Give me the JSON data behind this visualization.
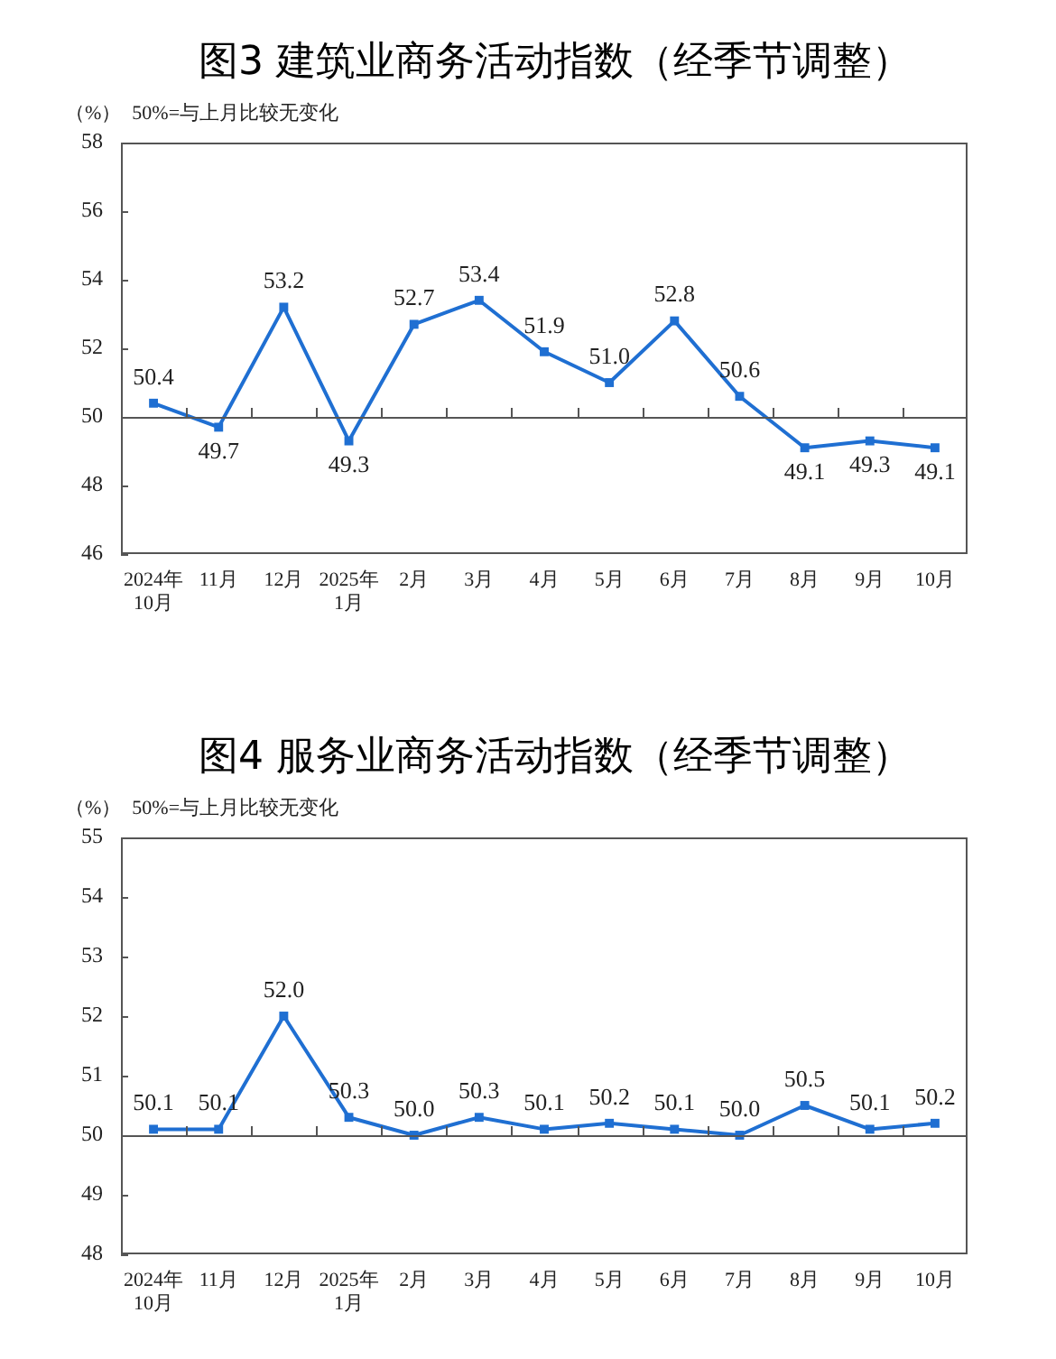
{
  "chart_data": [
    {
      "type": "line",
      "title": "图3  建筑业商务活动指数（经季节调整）",
      "ylabel": "（%）",
      "annotations": [
        "50%=与上月比较无变化"
      ],
      "categories": [
        "2024年\n10月",
        "11月",
        "12月",
        "2025年\n1月",
        "2月",
        "3月",
        "4月",
        "5月",
        "6月",
        "7月",
        "8月",
        "9月",
        "10月"
      ],
      "values": [
        50.4,
        49.7,
        53.2,
        49.3,
        52.7,
        53.4,
        51.9,
        51.0,
        52.8,
        50.6,
        49.1,
        49.3,
        49.1
      ],
      "value_labels": [
        "50.4",
        "49.7",
        "53.2",
        "49.3",
        "52.7",
        "53.4",
        "51.9",
        "51.0",
        "52.8",
        "50.6",
        "49.1",
        "49.3",
        "49.1"
      ],
      "color": "#1f6fd2",
      "marker": "square",
      "grid": false,
      "ylim": [
        46,
        58
      ],
      "yticks": [
        46,
        48,
        50,
        52,
        54,
        56,
        58
      ],
      "ref_lines": [
        {
          "axis": "y",
          "value": 50,
          "color": "#555555"
        }
      ]
    },
    {
      "type": "line",
      "title": "图4  服务业商务活动指数（经季节调整）",
      "ylabel": "（%）",
      "annotations": [
        "50%=与上月比较无变化"
      ],
      "categories": [
        "2024年\n10月",
        "11月",
        "12月",
        "2025年\n1月",
        "2月",
        "3月",
        "4月",
        "5月",
        "6月",
        "7月",
        "8月",
        "9月",
        "10月"
      ],
      "values": [
        50.1,
        50.1,
        52.0,
        50.3,
        50.0,
        50.3,
        50.1,
        50.2,
        50.1,
        50.0,
        50.5,
        50.1,
        50.2
      ],
      "value_labels": [
        "50.1",
        "50.1",
        "52.0",
        "50.3",
        "50.0",
        "50.3",
        "50.1",
        "50.2",
        "50.1",
        "50.0",
        "50.5",
        "50.1",
        "50.2"
      ],
      "color": "#1f6fd2",
      "marker": "square",
      "grid": false,
      "ylim": [
        48,
        55
      ],
      "yticks": [
        48,
        49,
        50,
        51,
        52,
        53,
        54,
        55
      ],
      "ref_lines": [
        {
          "axis": "y",
          "value": 50,
          "color": "#555555"
        }
      ]
    }
  ]
}
